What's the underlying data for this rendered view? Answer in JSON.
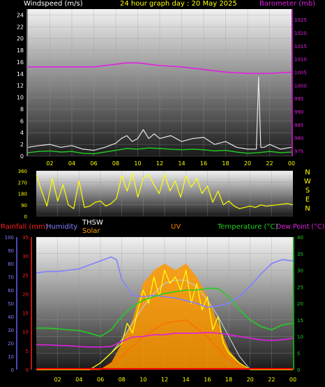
{
  "header": {
    "windspeed_label": "Windspeed (m/s)",
    "title": "24 hour graph day : 20 May 2025",
    "barometer_label": "Barometer (mb)"
  },
  "bottom_labels": {
    "rainfall": "Rainfall (mm)",
    "humidity": "Humidity",
    "thsw": "THSW",
    "solar": "Solar",
    "uv": "UV",
    "temperature": "Temperature (°C)",
    "dewpoint": "Dew Point (°C)"
  },
  "colors": {
    "wind_max": "#e8e8e8",
    "wind_avg": "#20d020",
    "barometer": "#e020e0",
    "direction": "#ffff00",
    "rain": "#ff0000",
    "humidity": "#8080ff",
    "solar": "#ff9900",
    "uv": "#ff9900",
    "thsw": "#ffff00",
    "temperature": "#20d020",
    "dewpoint": "#e020e0",
    "solar_max": "#c8c8c8"
  },
  "chart_data": [
    {
      "type": "line",
      "name": "wind-barometer",
      "x_ticks": [
        "02",
        "04",
        "06",
        "08",
        "10",
        "12",
        "14",
        "16",
        "18",
        "20",
        "22",
        "00"
      ],
      "y_left_ticks": [
        "0",
        "2",
        "4",
        "6",
        "8",
        "10",
        "12",
        "14",
        "16",
        "18",
        "20",
        "22",
        "24"
      ],
      "y_left_range": [
        0,
        25
      ],
      "y_right_ticks": [
        "975",
        "980",
        "985",
        "990",
        "995",
        "1000",
        "1005",
        "1010",
        "1015",
        "1020",
        "1025"
      ],
      "y_right_range": [
        973,
        1029
      ],
      "series": [
        {
          "name": "Barometer (mb)",
          "axis": "right",
          "x": [
            0,
            2,
            4,
            6,
            8,
            9,
            10,
            11,
            12,
            14,
            16,
            18,
            20,
            22,
            24
          ],
          "y": [
            1007,
            1007,
            1007,
            1007,
            1008,
            1008.5,
            1008.5,
            1008,
            1007.5,
            1007,
            1006,
            1005,
            1004.5,
            1004.5,
            1005
          ]
        },
        {
          "name": "gust",
          "axis": "left",
          "x": [
            0,
            1,
            2,
            3,
            4,
            5,
            6,
            7,
            8,
            8.5,
            9,
            9.5,
            10,
            10.5,
            11,
            11.5,
            12,
            13,
            14,
            15,
            16,
            17,
            18,
            19,
            20,
            20.8,
            21,
            21.2,
            21.5,
            22,
            23,
            24
          ],
          "y": [
            1.5,
            1.8,
            2,
            1.5,
            1.8,
            1.2,
            1,
            1.5,
            2.2,
            3,
            3.5,
            2.5,
            3,
            4.5,
            3,
            3.8,
            3,
            3.5,
            2.5,
            3,
            3.2,
            2,
            2.5,
            1.5,
            1.2,
            1.2,
            13.5,
            1.5,
            1.5,
            2,
            1.2,
            1.5
          ]
        },
        {
          "name": "average",
          "axis": "left",
          "x": [
            0,
            1,
            2,
            3,
            4,
            5,
            6,
            7,
            8,
            9,
            10,
            11,
            12,
            13,
            14,
            15,
            16,
            17,
            18,
            19,
            20,
            21,
            22,
            23,
            24
          ],
          "y": [
            0.6,
            0.8,
            0.9,
            0.7,
            0.8,
            0.5,
            0.4,
            0.7,
            1,
            1.3,
            1.2,
            1.4,
            1.3,
            1.2,
            1.1,
            1.2,
            1.1,
            0.9,
            1,
            0.7,
            0.5,
            0.6,
            0.8,
            0.6,
            0.7
          ]
        }
      ]
    },
    {
      "type": "scatter",
      "name": "wind-direction",
      "x_ticks": [
        "02",
        "04",
        "06",
        "08",
        "10",
        "12",
        "14",
        "16",
        "18",
        "20",
        "22",
        "00"
      ],
      "y_left_ticks": [
        "0",
        "90",
        "180",
        "270",
        "360"
      ],
      "y_range": [
        0,
        360
      ],
      "compass": [
        "N",
        "W",
        "S",
        "E",
        "N"
      ],
      "series": [
        {
          "name": "direction",
          "x": [
            0,
            0.5,
            1,
            1.5,
            2,
            2.5,
            3,
            3.5,
            4,
            4.5,
            5,
            5.5,
            6,
            6.5,
            7,
            7.5,
            8,
            8.5,
            9,
            9.5,
            10,
            10.5,
            11,
            11.5,
            12,
            12.5,
            13,
            13.5,
            14,
            14.5,
            15,
            15.5,
            16,
            16.5,
            17,
            17.5,
            18,
            18.5,
            19,
            19.5,
            20,
            20.5,
            21,
            21.5,
            22,
            22.5,
            23,
            23.5,
            24
          ],
          "y": [
            330,
            200,
            80,
            300,
            120,
            250,
            90,
            60,
            280,
            70,
            80,
            110,
            120,
            80,
            100,
            140,
            320,
            200,
            340,
            150,
            300,
            330,
            250,
            180,
            330,
            200,
            280,
            150,
            320,
            230,
            300,
            180,
            240,
            110,
            200,
            90,
            120,
            80,
            60,
            70,
            80,
            70,
            90,
            80,
            85,
            90,
            95,
            100,
            90
          ]
        }
      ]
    },
    {
      "type": "line",
      "name": "temperature-humidity-solar",
      "x_ticks": [
        "02",
        "04",
        "06",
        "08",
        "10",
        "12",
        "14",
        "16",
        "18",
        "20",
        "22",
        "00"
      ],
      "y_humidity_ticks": [
        "0",
        "10",
        "20",
        "30",
        "40",
        "50",
        "60",
        "70",
        "80",
        "90",
        "100"
      ],
      "y_rain_ticks": [
        "0",
        "5",
        "10",
        "15",
        "20",
        "25",
        "30",
        "35"
      ],
      "y_right_ticks": [
        "0",
        "5",
        "10",
        "15",
        "20",
        "25",
        "30",
        "35",
        "40"
      ],
      "series": [
        {
          "name": "Humidity",
          "axis": "humidity",
          "x": [
            0,
            1,
            2,
            3,
            4,
            5,
            6,
            7,
            7.5,
            8,
            9,
            10,
            11,
            12,
            13,
            14,
            15,
            16,
            17,
            18,
            19,
            20,
            21,
            22,
            23,
            24
          ],
          "y": [
            73,
            74,
            74,
            75,
            76,
            79,
            82,
            85,
            83,
            68,
            56,
            55,
            56,
            55,
            54,
            52,
            50,
            47,
            48,
            50,
            55,
            63,
            72,
            80,
            83,
            82
          ]
        },
        {
          "name": "Temperature (°C)",
          "axis": "right",
          "x": [
            0,
            1,
            2,
            3,
            4,
            5,
            6,
            7,
            8,
            9,
            10,
            11,
            12,
            13,
            14,
            15,
            16,
            17,
            18,
            19,
            20,
            21,
            22,
            23,
            24
          ],
          "y": [
            12.5,
            12.5,
            12.3,
            12,
            11.8,
            11,
            10,
            12,
            16,
            19,
            21,
            22,
            23,
            23.5,
            24,
            24,
            24.5,
            24.5,
            22,
            18,
            15,
            13,
            12,
            13.5,
            14
          ]
        },
        {
          "name": "Dew Point (°C)",
          "axis": "right",
          "x": [
            0,
            1,
            2,
            3,
            4,
            5,
            6,
            7,
            8,
            9,
            10,
            11,
            12,
            13,
            14,
            15,
            16,
            17,
            18,
            19,
            20,
            21,
            22,
            23,
            24
          ],
          "y": [
            7.5,
            7.5,
            7.3,
            7.2,
            7,
            6.8,
            6.8,
            7,
            8.5,
            9.8,
            10,
            10.5,
            10.5,
            11,
            11,
            11,
            11.2,
            11,
            10.5,
            10,
            9.5,
            9,
            8.8,
            9,
            9.5
          ]
        },
        {
          "name": "THSW",
          "axis": "right",
          "x": [
            0,
            5,
            6,
            7,
            8,
            8.5,
            9,
            9.5,
            10,
            10.5,
            11,
            11.5,
            12,
            12.5,
            13,
            13.5,
            14,
            14.5,
            15,
            15.5,
            16,
            16.5,
            17,
            17.5,
            18,
            19,
            20,
            24
          ],
          "y": [
            0,
            0,
            2,
            5,
            8,
            14,
            11,
            18,
            24,
            20,
            28,
            22,
            30,
            26,
            28,
            24,
            30,
            20,
            26,
            18,
            22,
            12,
            16,
            8,
            5,
            2,
            0,
            0
          ]
        },
        {
          "name": "Solar",
          "axis": "right",
          "x": [
            0,
            6,
            7,
            8,
            9,
            10,
            11,
            12,
            13,
            14,
            15,
            16,
            17,
            18,
            19,
            20,
            24
          ],
          "y": [
            0,
            0,
            2,
            8,
            15,
            26,
            30,
            32,
            30,
            32,
            28,
            22,
            14,
            6,
            2,
            0,
            0
          ]
        },
        {
          "name": "UV",
          "axis": "right",
          "x": [
            0,
            6,
            8,
            10,
            12,
            14,
            16,
            18,
            20,
            24
          ],
          "y": [
            0,
            0,
            4,
            10,
            14,
            15,
            10,
            3,
            0,
            0
          ]
        },
        {
          "name": "Solar max",
          "axis": "right",
          "x": [
            0,
            5,
            6,
            7,
            8,
            9,
            10,
            11,
            12,
            13,
            14,
            15,
            16,
            17,
            18,
            19,
            20,
            24
          ],
          "y": [
            0,
            0,
            2,
            5,
            9,
            14,
            19,
            23,
            26,
            27,
            27,
            25,
            21,
            16,
            10,
            4,
            0,
            0
          ]
        },
        {
          "name": "Rainfall (mm)",
          "axis": "rain",
          "x": [
            0,
            24
          ],
          "y": [
            0,
            0
          ]
        }
      ]
    }
  ]
}
